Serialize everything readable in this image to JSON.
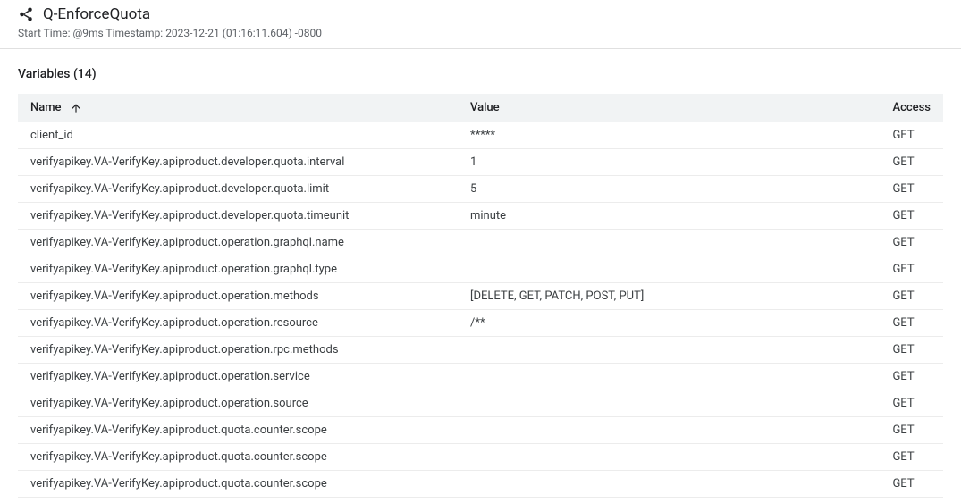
{
  "header": {
    "title": "Q-EnforceQuota",
    "subtitle": "Start Time: @9ms Timestamp: 2023-12-21 (01:16:11.604) -0800"
  },
  "section": {
    "title": "Variables (14)"
  },
  "columns": {
    "name": "Name",
    "value": "Value",
    "access": "Access"
  },
  "rows": [
    {
      "name": "client_id",
      "value": "*****",
      "access": "GET"
    },
    {
      "name": "verifyapikey.VA-VerifyKey.apiproduct.developer.quota.interval",
      "value": "1",
      "access": "GET"
    },
    {
      "name": "verifyapikey.VA-VerifyKey.apiproduct.developer.quota.limit",
      "value": "5",
      "access": "GET"
    },
    {
      "name": "verifyapikey.VA-VerifyKey.apiproduct.developer.quota.timeunit",
      "value": "minute",
      "access": "GET"
    },
    {
      "name": "verifyapikey.VA-VerifyKey.apiproduct.operation.graphql.name",
      "value": "",
      "access": "GET"
    },
    {
      "name": "verifyapikey.VA-VerifyKey.apiproduct.operation.graphql.type",
      "value": "",
      "access": "GET"
    },
    {
      "name": "verifyapikey.VA-VerifyKey.apiproduct.operation.methods",
      "value": "[DELETE, GET, PATCH, POST, PUT]",
      "access": "GET"
    },
    {
      "name": "verifyapikey.VA-VerifyKey.apiproduct.operation.resource",
      "value": "/**",
      "access": "GET"
    },
    {
      "name": "verifyapikey.VA-VerifyKey.apiproduct.operation.rpc.methods",
      "value": "",
      "access": "GET"
    },
    {
      "name": "verifyapikey.VA-VerifyKey.apiproduct.operation.service",
      "value": "",
      "access": "GET"
    },
    {
      "name": "verifyapikey.VA-VerifyKey.apiproduct.operation.source",
      "value": "",
      "access": "GET"
    },
    {
      "name": "verifyapikey.VA-VerifyKey.apiproduct.quota.counter.scope",
      "value": "",
      "access": "GET"
    },
    {
      "name": "verifyapikey.VA-VerifyKey.apiproduct.quota.counter.scope",
      "value": "",
      "access": "GET"
    },
    {
      "name": "verifyapikey.VA-VerifyKey.apiproduct.quota.counter.scope",
      "value": "",
      "access": "GET"
    }
  ]
}
